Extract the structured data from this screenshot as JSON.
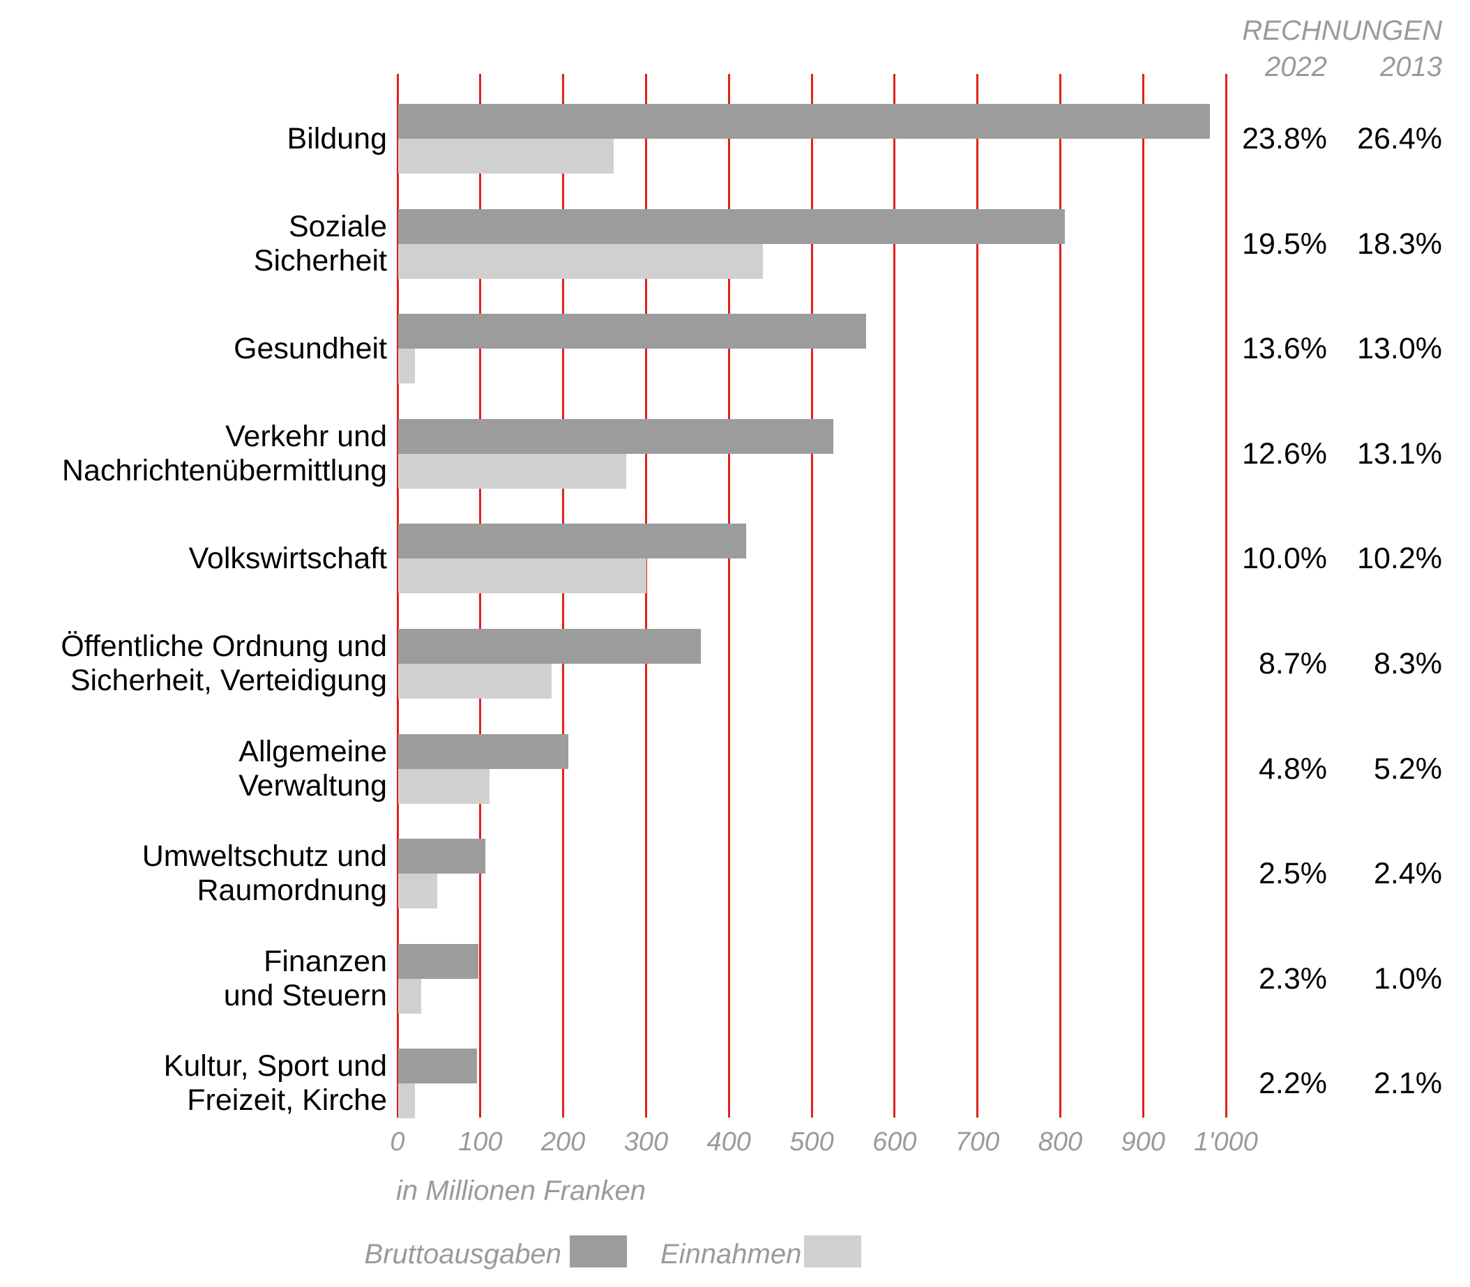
{
  "header": {
    "title": "RECHNUNGEN",
    "col_left": "2022",
    "col_right": "2013"
  },
  "axis": {
    "tick_labels": [
      "0",
      "100",
      "200",
      "300",
      "400",
      "500",
      "600",
      "700",
      "800",
      "900",
      "1'000"
    ],
    "caption": "in Millionen Franken"
  },
  "legend": {
    "expenses_label": "Bruttoausgaben",
    "income_label": "Einnahmen"
  },
  "colors": {
    "expenses": "#9C9C9C",
    "income": "#D0D0D0",
    "grid": "#E0201C",
    "muted_text": "#9A9A9A",
    "text": "#000000"
  },
  "chart_data": {
    "type": "bar",
    "orientation": "horizontal",
    "title": "",
    "xlabel": "in Millionen Franken",
    "xlim": [
      0,
      1000
    ],
    "x_tick_step": 100,
    "grid": true,
    "legend_position": "bottom",
    "categories": [
      [
        "Bildung"
      ],
      [
        "Soziale",
        "Sicherheit"
      ],
      [
        "Gesundheit"
      ],
      [
        "Verkehr und",
        "Nachrichtenübermittlung"
      ],
      [
        "Volkswirtschaft"
      ],
      [
        "Öffentliche Ordnung und",
        "Sicherheit, Verteidigung"
      ],
      [
        "Allgemeine",
        "Verwaltung"
      ],
      [
        "Umweltschutz und",
        "Raumordnung"
      ],
      [
        "Finanzen",
        "und Steuern"
      ],
      [
        "Kultur, Sport und",
        "Freizeit, Kirche"
      ]
    ],
    "series": [
      {
        "name": "Bruttoausgaben",
        "values": [
          980,
          805,
          565,
          525,
          420,
          365,
          205,
          105,
          97,
          95
        ]
      },
      {
        "name": "Einnahmen",
        "values": [
          260,
          440,
          20,
          275,
          300,
          185,
          110,
          47,
          28,
          20
        ]
      }
    ],
    "percent_2022": [
      "23.8%",
      "19.5%",
      "13.6%",
      "12.6%",
      "10.0%",
      "8.7%",
      "4.8%",
      "2.5%",
      "2.3%",
      "2.2%"
    ],
    "percent_2013": [
      "26.4%",
      "18.3%",
      "13.0%",
      "13.1%",
      "10.2%",
      "8.3%",
      "5.2%",
      "2.4%",
      "1.0%",
      "2.1%"
    ]
  }
}
